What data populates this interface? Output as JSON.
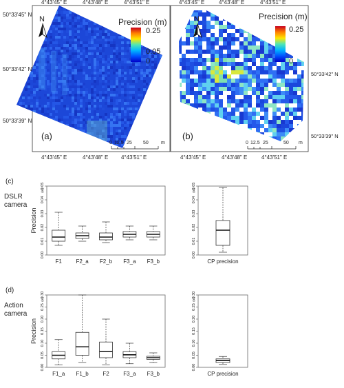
{
  "maps": {
    "a": {
      "panel_label": "(a)",
      "north": "N",
      "legend_title": "Precision (m)",
      "legend_ticks": [
        "0.25",
        "0.05",
        "0"
      ],
      "colorbar_stops": [
        "#c8001e",
        "#ff8000",
        "#ffe600",
        "#50e6b4",
        "#00b4ff",
        "#0050ff",
        "#0000c8"
      ],
      "scale_ticks": [
        "0",
        "12.5",
        "25",
        "50"
      ],
      "scale_unit": "m",
      "top_lon": [
        "4°43'45\" E",
        "4°43'48\" E",
        "4°43'51\" E"
      ],
      "bottom_lon": [
        "4°43'45\" E",
        "4°43'48\" E",
        "4°43'51\" E"
      ],
      "lat": [
        "50°33'45\" N",
        "50°33'42\" N",
        "50°33'39\" N"
      ]
    },
    "b": {
      "panel_label": "(b)",
      "north": "N",
      "legend_title": "Precision (m)",
      "legend_ticks": [
        "0.25",
        "0"
      ],
      "scale_ticks": [
        "0",
        "12.5",
        "25",
        "50"
      ],
      "scale_unit": "m",
      "top_lon": [
        "4°43'45\" E",
        "4°43'48\" E",
        "4°43'51\" E"
      ],
      "bottom_lon": [
        "4°43'45\" E",
        "4°43'48\" E",
        "4°43'51\" E"
      ],
      "lat": [
        "50°33'42\" N",
        "50°33'39\" N"
      ]
    }
  },
  "chart_data": [
    {
      "type": "box",
      "panel_label": "(c)",
      "row_label": [
        "DSLR",
        "camera"
      ],
      "ylabel": "Precision",
      "unit": "(m)",
      "ylim": [
        0,
        0.05
      ],
      "yticks": [
        0,
        0.01,
        0.02,
        0.03,
        0.04,
        0.05
      ],
      "categories": [
        "F1",
        "F2_a",
        "F2_b",
        "F3_a",
        "F3_b"
      ],
      "boxes": [
        {
          "min": 0.007,
          "q1": 0.01,
          "median": 0.013,
          "q3": 0.018,
          "max": 0.031
        },
        {
          "min": 0.01,
          "q1": 0.012,
          "median": 0.014,
          "q3": 0.016,
          "max": 0.021
        },
        {
          "min": 0.009,
          "q1": 0.011,
          "median": 0.013,
          "q3": 0.016,
          "max": 0.024
        },
        {
          "min": 0.011,
          "q1": 0.013,
          "median": 0.015,
          "q3": 0.017,
          "max": 0.021
        },
        {
          "min": 0.011,
          "q1": 0.013,
          "median": 0.015,
          "q3": 0.017,
          "max": 0.021
        }
      ]
    },
    {
      "type": "box",
      "panel_label": "",
      "ylabel": "",
      "unit": "(m)",
      "ylim": [
        0,
        0.05
      ],
      "yticks": [
        0,
        0.01,
        0.02,
        0.03,
        0.04,
        0.05
      ],
      "categories": [
        "CP precision"
      ],
      "boxes": [
        {
          "min": 0.002,
          "q1": 0.007,
          "median": 0.018,
          "q3": 0.025,
          "max": 0.049
        }
      ]
    },
    {
      "type": "box",
      "panel_label": "(d)",
      "row_label": [
        "Action",
        "camera"
      ],
      "ylabel": "Precision",
      "unit": "(m)",
      "ylim": [
        0,
        0.3
      ],
      "yticks": [
        0,
        0.05,
        0.1,
        0.15,
        0.2,
        0.25,
        0.3
      ],
      "categories": [
        "F1_a",
        "F1_b",
        "F2",
        "F3_a",
        "F3_b"
      ],
      "boxes": [
        {
          "min": 0.01,
          "q1": 0.035,
          "median": 0.05,
          "q3": 0.065,
          "max": 0.115
        },
        {
          "min": 0.02,
          "q1": 0.05,
          "median": 0.085,
          "q3": 0.145,
          "max": 0.3
        },
        {
          "min": 0.01,
          "q1": 0.04,
          "median": 0.065,
          "q3": 0.105,
          "max": 0.2
        },
        {
          "min": 0.015,
          "q1": 0.04,
          "median": 0.052,
          "q3": 0.065,
          "max": 0.1
        },
        {
          "min": 0.02,
          "q1": 0.033,
          "median": 0.04,
          "q3": 0.046,
          "max": 0.06
        }
      ]
    },
    {
      "type": "box",
      "panel_label": "",
      "ylabel": "",
      "unit": "(m)",
      "ylim": [
        0,
        0.3
      ],
      "yticks": [
        0,
        0.05,
        0.1,
        0.15,
        0.2,
        0.25,
        0.3
      ],
      "categories": [
        "CP precision"
      ],
      "boxes": [
        {
          "min": 0.012,
          "q1": 0.02,
          "median": 0.028,
          "q3": 0.035,
          "max": 0.045
        }
      ]
    }
  ]
}
